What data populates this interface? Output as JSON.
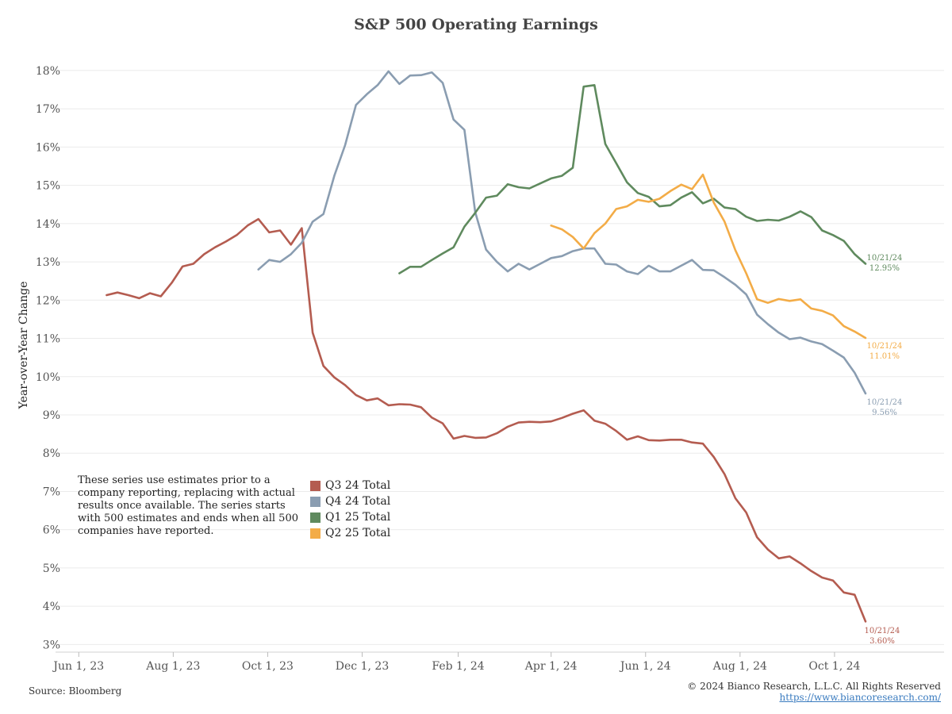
{
  "chart_data": {
    "type": "line",
    "title": "S&P 500 Operating Earnings",
    "ylabel": "Year-over-Year Change",
    "xlabel": "",
    "ylim": [
      2.8,
      18.6
    ],
    "y_ticks": [
      "3%",
      "4%",
      "5%",
      "6%",
      "7%",
      "8%",
      "9%",
      "10%",
      "11%",
      "12%",
      "13%",
      "14%",
      "15%",
      "16%",
      "17%",
      "18%"
    ],
    "y_tick_values": [
      3,
      4,
      5,
      6,
      7,
      8,
      9,
      10,
      11,
      12,
      13,
      14,
      15,
      16,
      17,
      18
    ],
    "x_range": [
      "2023-05-17",
      "2024-11-10"
    ],
    "x_ticks": [
      {
        "label": "Jun 1, 23",
        "date": "2023-06-01"
      },
      {
        "label": "Aug 1, 23",
        "date": "2023-08-01"
      },
      {
        "label": "Oct 1, 23",
        "date": "2023-10-01"
      },
      {
        "label": "Dec 1, 23",
        "date": "2023-12-01"
      },
      {
        "label": "Feb 1, 24",
        "date": "2024-02-01"
      },
      {
        "label": "Apr 1, 24",
        "date": "2024-04-01"
      },
      {
        "label": "Jun 1, 24",
        "date": "2024-06-01"
      },
      {
        "label": "Aug 1, 24",
        "date": "2024-08-01"
      },
      {
        "label": "Oct 1, 24",
        "date": "2024-10-01"
      }
    ],
    "grid": "horizontal",
    "legend_position": "lower-left",
    "series": [
      {
        "name": "Q3 24 Total",
        "color": "#b45c50",
        "end_label": [
          "10/21/24",
          "3.60%"
        ],
        "x": [
          "2023-06-19",
          "2023-06-26",
          "2023-07-03",
          "2023-07-10",
          "2023-07-17",
          "2023-07-24",
          "2023-07-31",
          "2023-08-07",
          "2023-08-14",
          "2023-08-21",
          "2023-08-28",
          "2023-09-04",
          "2023-09-11",
          "2023-09-18",
          "2023-09-25",
          "2023-10-02",
          "2023-10-09",
          "2023-10-16",
          "2023-10-23",
          "2023-10-30",
          "2023-11-06",
          "2023-11-13",
          "2023-11-20",
          "2023-11-27",
          "2023-12-04",
          "2023-12-11",
          "2023-12-18",
          "2023-12-25",
          "2024-01-01",
          "2024-01-08",
          "2024-01-15",
          "2024-01-22",
          "2024-01-29",
          "2024-02-05",
          "2024-02-12",
          "2024-02-19",
          "2024-02-26",
          "2024-03-04",
          "2024-03-11",
          "2024-03-18",
          "2024-03-25",
          "2024-04-01",
          "2024-04-08",
          "2024-04-15",
          "2024-04-22",
          "2024-04-29",
          "2024-05-06",
          "2024-05-13",
          "2024-05-20",
          "2024-05-27",
          "2024-06-03",
          "2024-06-10",
          "2024-06-17",
          "2024-06-24",
          "2024-07-01",
          "2024-07-08",
          "2024-07-15",
          "2024-07-22",
          "2024-07-29",
          "2024-08-05",
          "2024-08-12",
          "2024-08-19",
          "2024-08-26",
          "2024-09-02",
          "2024-09-09",
          "2024-09-16",
          "2024-09-23",
          "2024-09-30",
          "2024-10-07",
          "2024-10-14",
          "2024-10-21"
        ],
        "y": [
          12.13,
          12.2,
          12.13,
          12.05,
          12.18,
          12.1,
          12.45,
          12.88,
          12.95,
          13.2,
          13.38,
          13.53,
          13.7,
          13.95,
          14.12,
          13.77,
          13.82,
          13.45,
          13.88,
          11.15,
          10.28,
          9.98,
          9.78,
          9.52,
          9.38,
          9.43,
          9.25,
          9.28,
          9.27,
          9.2,
          8.93,
          8.78,
          8.38,
          8.45,
          8.4,
          8.41,
          8.52,
          8.69,
          8.8,
          8.82,
          8.81,
          8.83,
          8.92,
          9.03,
          9.12,
          8.85,
          8.77,
          8.58,
          8.35,
          8.44,
          8.34,
          8.33,
          8.35,
          8.35,
          8.28,
          8.25,
          7.9,
          7.45,
          6.82,
          6.45,
          5.8,
          5.48,
          5.25,
          5.3,
          5.12,
          4.92,
          4.75,
          4.67,
          4.36,
          4.3,
          3.6
        ]
      },
      {
        "name": "Q4 24 Total",
        "color": "#8a9db1",
        "end_label": [
          "10/21/24",
          "9.56%"
        ],
        "x": [
          "2023-09-25",
          "2023-10-02",
          "2023-10-09",
          "2023-10-16",
          "2023-10-23",
          "2023-10-30",
          "2023-11-06",
          "2023-11-13",
          "2023-11-20",
          "2023-11-27",
          "2023-12-04",
          "2023-12-11",
          "2023-12-18",
          "2023-12-25",
          "2024-01-01",
          "2024-01-08",
          "2024-01-15",
          "2024-01-22",
          "2024-01-29",
          "2024-02-05",
          "2024-02-12",
          "2024-02-19",
          "2024-02-26",
          "2024-03-04",
          "2024-03-11",
          "2024-03-18",
          "2024-03-25",
          "2024-04-01",
          "2024-04-08",
          "2024-04-15",
          "2024-04-22",
          "2024-04-29",
          "2024-05-06",
          "2024-05-13",
          "2024-05-20",
          "2024-05-27",
          "2024-06-03",
          "2024-06-10",
          "2024-06-17",
          "2024-06-24",
          "2024-07-01",
          "2024-07-08",
          "2024-07-15",
          "2024-07-22",
          "2024-07-29",
          "2024-08-05",
          "2024-08-12",
          "2024-08-19",
          "2024-08-26",
          "2024-09-02",
          "2024-09-09",
          "2024-09-16",
          "2024-09-23",
          "2024-09-30",
          "2024-10-07",
          "2024-10-14",
          "2024-10-21"
        ],
        "y": [
          12.8,
          13.05,
          13.0,
          13.2,
          13.5,
          14.05,
          14.25,
          15.25,
          16.05,
          17.1,
          17.38,
          17.62,
          17.98,
          17.65,
          17.87,
          17.88,
          17.95,
          17.68,
          16.72,
          16.45,
          14.3,
          13.32,
          13.0,
          12.75,
          12.95,
          12.8,
          12.95,
          13.1,
          13.15,
          13.28,
          13.35,
          13.35,
          12.95,
          12.93,
          12.75,
          12.68,
          12.9,
          12.75,
          12.75,
          12.9,
          13.05,
          12.79,
          12.78,
          12.6,
          12.4,
          12.15,
          11.62,
          11.37,
          11.15,
          10.98,
          11.02,
          10.92,
          10.85,
          10.68,
          10.5,
          10.1,
          9.56
        ]
      },
      {
        "name": "Q1 25 Total",
        "color": "#5f8a5e",
        "end_label": [
          "10/21/24",
          "12.95%"
        ],
        "x": [
          "2023-12-25",
          "2024-01-01",
          "2024-01-08",
          "2024-01-15",
          "2024-01-22",
          "2024-01-29",
          "2024-02-05",
          "2024-02-12",
          "2024-02-19",
          "2024-02-26",
          "2024-03-04",
          "2024-03-11",
          "2024-03-18",
          "2024-03-25",
          "2024-04-01",
          "2024-04-08",
          "2024-04-15",
          "2024-04-22",
          "2024-04-29",
          "2024-05-06",
          "2024-05-13",
          "2024-05-20",
          "2024-05-27",
          "2024-06-03",
          "2024-06-10",
          "2024-06-17",
          "2024-06-24",
          "2024-07-01",
          "2024-07-08",
          "2024-07-15",
          "2024-07-22",
          "2024-07-29",
          "2024-08-05",
          "2024-08-12",
          "2024-08-19",
          "2024-08-26",
          "2024-09-02",
          "2024-09-09",
          "2024-09-16",
          "2024-09-23",
          "2024-09-30",
          "2024-10-07",
          "2024-10-14",
          "2024-10-21"
        ],
        "y": [
          12.7,
          12.87,
          12.87,
          13.05,
          13.22,
          13.38,
          13.92,
          14.28,
          14.68,
          14.73,
          15.03,
          14.95,
          14.92,
          15.05,
          15.18,
          15.25,
          15.46,
          17.58,
          17.62,
          16.08,
          15.58,
          15.08,
          14.8,
          14.7,
          14.45,
          14.48,
          14.68,
          14.82,
          14.53,
          14.65,
          14.42,
          14.38,
          14.18,
          14.07,
          14.1,
          14.08,
          14.18,
          14.32,
          14.17,
          13.82,
          13.7,
          13.55,
          13.2,
          12.95
        ]
      },
      {
        "name": "Q2 25 Total",
        "color": "#f3ac47",
        "end_label": [
          "10/21/24",
          "11.01%"
        ],
        "x": [
          "2024-04-01",
          "2024-04-08",
          "2024-04-15",
          "2024-04-22",
          "2024-04-29",
          "2024-05-06",
          "2024-05-13",
          "2024-05-20",
          "2024-05-27",
          "2024-06-03",
          "2024-06-10",
          "2024-06-17",
          "2024-06-24",
          "2024-07-01",
          "2024-07-08",
          "2024-07-15",
          "2024-07-22",
          "2024-07-29",
          "2024-08-05",
          "2024-08-12",
          "2024-08-19",
          "2024-08-26",
          "2024-09-02",
          "2024-09-09",
          "2024-09-16",
          "2024-09-23",
          "2024-09-30",
          "2024-10-07",
          "2024-10-14",
          "2024-10-21"
        ],
        "y": [
          13.95,
          13.85,
          13.65,
          13.35,
          13.75,
          14.0,
          14.38,
          14.45,
          14.62,
          14.57,
          14.65,
          14.85,
          15.02,
          14.9,
          15.28,
          14.55,
          14.05,
          13.3,
          12.7,
          12.02,
          11.93,
          12.03,
          11.98,
          12.02,
          11.78,
          11.72,
          11.6,
          11.32,
          11.18,
          11.01
        ]
      }
    ]
  },
  "note": "These series use estimates prior to a company reporting, replacing with actual results once available. The series starts with 500 estimates and ends when all 500 companies have reported.",
  "legend": [
    {
      "label": "Q3 24 Total",
      "color": "#b45c50"
    },
    {
      "label": "Q4 24 Total",
      "color": "#8a9db1"
    },
    {
      "label": "Q1 25 Total",
      "color": "#5f8a5e"
    },
    {
      "label": "Q2 25 Total",
      "color": "#f3ac47"
    }
  ],
  "footer": {
    "source": "Source: Bloomberg",
    "copyright": "© 2024 Bianco Research, L.L.C. All Rights Reserved",
    "url": "https://www.biancoresearch.com/"
  }
}
